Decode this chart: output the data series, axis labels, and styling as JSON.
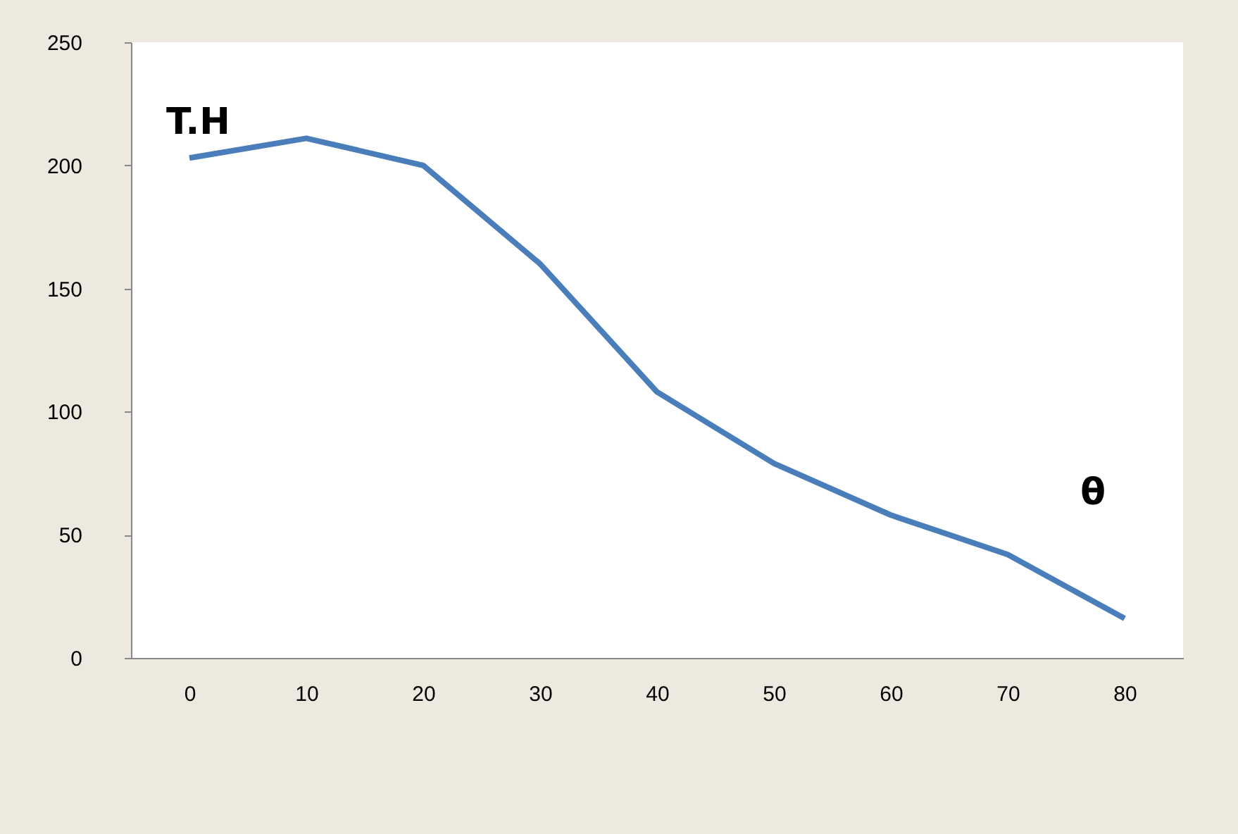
{
  "chart_data": {
    "type": "line",
    "xlabel": "θ",
    "ylabel": "T.H",
    "categories": [
      "0",
      "10",
      "20",
      "30",
      "40",
      "50",
      "60",
      "70",
      "80"
    ],
    "series": [
      {
        "color": "#4a7ebb",
        "values": [
          203,
          211,
          200,
          160,
          108,
          79,
          58,
          42,
          16
        ]
      }
    ],
    "ylim": [
      0,
      250
    ],
    "yticks": [
      0,
      50,
      100,
      150,
      200,
      250
    ],
    "grid": false,
    "marker": "none",
    "line_style": "solid"
  }
}
